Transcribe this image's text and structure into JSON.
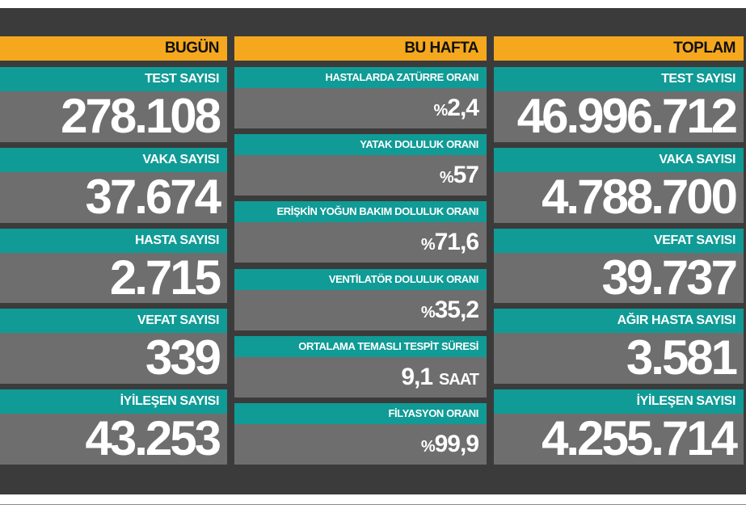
{
  "columns": [
    {
      "title": "BUGÜN",
      "rows": [
        {
          "label": "TEST SAYISI",
          "value": "278.108"
        },
        {
          "label": "VAKA SAYISI",
          "value": "37.674"
        },
        {
          "label": "HASTA SAYISI",
          "value": "2.715"
        },
        {
          "label": "VEFAT SAYISI",
          "value": "339"
        },
        {
          "label": "İYİLEŞEN SAYISI",
          "value": "43.253"
        }
      ]
    },
    {
      "title": "BU HAFTA",
      "rows": [
        {
          "label": "HASTALARDA ZATÜRRE ORANI",
          "prefix": "%",
          "value": "2,4"
        },
        {
          "label": "YATAK DOLULUK ORANI",
          "prefix": "%",
          "value": "57"
        },
        {
          "label": "ERİŞKİN YOĞUN BAKIM DOLULUK ORANI",
          "prefix": "%",
          "value": "71,6"
        },
        {
          "label": "VENTİLATÖR DOLULUK ORANI",
          "prefix": "%",
          "value": "35,2"
        },
        {
          "label": "ORTALAMA TEMASLI TESPİT SÜRESİ",
          "value": "9,1",
          "suffix": "SAAT"
        },
        {
          "label": "FİLYASYON ORANI",
          "prefix": "%",
          "value": "99,9"
        }
      ]
    },
    {
      "title": "TOPLAM",
      "rows": [
        {
          "label": "TEST SAYISI",
          "value": "46.996.712"
        },
        {
          "label": "VAKA SAYISI",
          "value": "4.788.700"
        },
        {
          "label": "VEFAT SAYISI",
          "value": "39.737"
        },
        {
          "label": "AĞIR HASTA SAYISI",
          "value": "3.581"
        },
        {
          "label": "İYİLEŞEN SAYISI",
          "value": "4.255.714"
        }
      ]
    }
  ]
}
